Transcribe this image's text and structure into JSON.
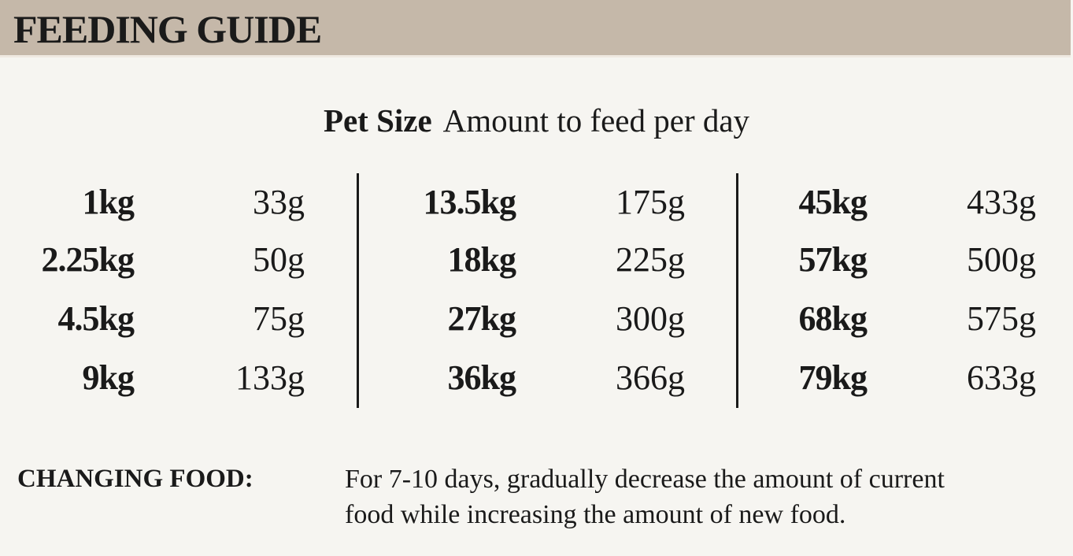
{
  "header": {
    "title": "FEEDING GUIDE"
  },
  "table": {
    "heading_size": "Pet Size",
    "heading_amount": "Amount to feed per day",
    "columns": [
      [
        {
          "size": "1kg",
          "amount": "33g"
        },
        {
          "size": "2.25kg",
          "amount": "50g"
        },
        {
          "size": "4.5kg",
          "amount": "75g"
        },
        {
          "size": "9kg",
          "amount": "133g"
        }
      ],
      [
        {
          "size": "13.5kg",
          "amount": "175g"
        },
        {
          "size": "18kg",
          "amount": "225g"
        },
        {
          "size": "27kg",
          "amount": "300g"
        },
        {
          "size": "36kg",
          "amount": "366g"
        }
      ],
      [
        {
          "size": "45kg",
          "amount": "433g"
        },
        {
          "size": "57kg",
          "amount": "500g"
        },
        {
          "size": "68kg",
          "amount": "575g"
        },
        {
          "size": "79kg",
          "amount": "633g"
        }
      ]
    ]
  },
  "note": {
    "label": "CHANGING FOOD:",
    "line1": "For 7-10 days, gradually decrease the amount of current",
    "line2": "food while increasing the amount of new food."
  },
  "colors": {
    "header_bg": "#c5b8a9",
    "page_bg": "#f6f5f1",
    "text": "#1a1a1a"
  }
}
